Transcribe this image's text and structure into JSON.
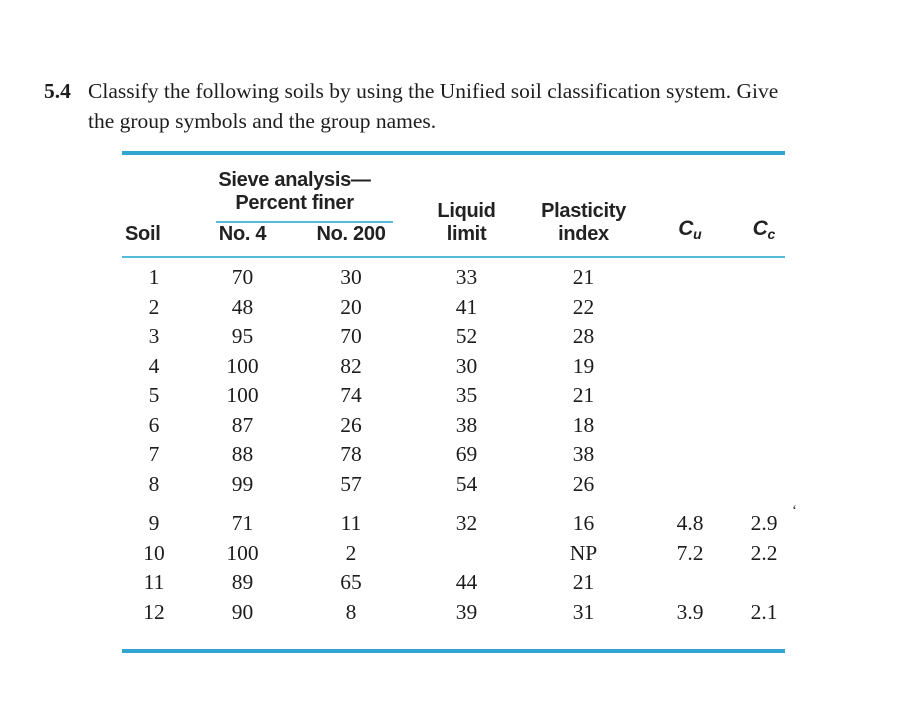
{
  "page": {
    "background": "#ffffff",
    "accent_thick_rule": "#2fa5d0",
    "accent_thin_rule": "#54bbd9",
    "text_color": "#1d1d1d"
  },
  "problem": {
    "number": "5.4",
    "statement_lines": [
      "Classify the following soils by using the Unified soil classification system. Give",
      "the group symbols and the group names."
    ]
  },
  "table": {
    "group_header_line1": "Sieve analysis—",
    "group_header_line2": "Percent finer",
    "headers": {
      "soil": "Soil",
      "no4": "No. 4",
      "no200": "No. 200",
      "liquid_line1": "Liquid",
      "liquid_line2": "limit",
      "plasticity_line1": "Plasticity",
      "plasticity_line2": "index",
      "cu_base": "C",
      "cu_sub": "u",
      "cc_base": "C",
      "cc_sub": "c"
    },
    "rows": [
      {
        "soil": "1",
        "no4": "70",
        "no200": "30",
        "ll": "33",
        "pi": "21",
        "cu": "",
        "cc": "",
        "artifact": ""
      },
      {
        "soil": "2",
        "no4": "48",
        "no200": "20",
        "ll": "41",
        "pi": "22",
        "cu": "",
        "cc": "",
        "artifact": ""
      },
      {
        "soil": "3",
        "no4": "95",
        "no200": "70",
        "ll": "52",
        "pi": "28",
        "cu": "",
        "cc": "",
        "artifact": ""
      },
      {
        "soil": "4",
        "no4": "100",
        "no200": "82",
        "ll": "30",
        "pi": "19",
        "cu": "",
        "cc": "",
        "artifact": ""
      },
      {
        "soil": "5",
        "no4": "100",
        "no200": "74",
        "ll": "35",
        "pi": "21",
        "cu": "",
        "cc": "",
        "artifact": ""
      },
      {
        "soil": "6",
        "no4": "87",
        "no200": "26",
        "ll": "38",
        "pi": "18",
        "cu": "",
        "cc": "",
        "artifact": ""
      },
      {
        "soil": "7",
        "no4": "88",
        "no200": "78",
        "ll": "69",
        "pi": "38",
        "cu": "",
        "cc": "",
        "artifact": ""
      },
      {
        "soil": "8",
        "no4": "99",
        "no200": "57",
        "ll": "54",
        "pi": "26",
        "cu": "",
        "cc": "",
        "artifact": ""
      },
      {
        "soil": "9",
        "no4": "71",
        "no200": "11",
        "ll": "32",
        "pi": "16",
        "cu": "4.8",
        "cc": "2.9",
        "artifact": "‘",
        "gap_above": true
      },
      {
        "soil": "10",
        "no4": "100",
        "no200": "2",
        "ll": "",
        "pi": "NP",
        "cu": "7.2",
        "cc": "2.2",
        "artifact": ""
      },
      {
        "soil": "11",
        "no4": "89",
        "no200": "65",
        "ll": "44",
        "pi": "21",
        "cu": "",
        "cc": "",
        "artifact": ""
      },
      {
        "soil": "12",
        "no4": "90",
        "no200": "8",
        "ll": "39",
        "pi": "31",
        "cu": "3.9",
        "cc": "2.1",
        "artifact": ""
      }
    ]
  }
}
